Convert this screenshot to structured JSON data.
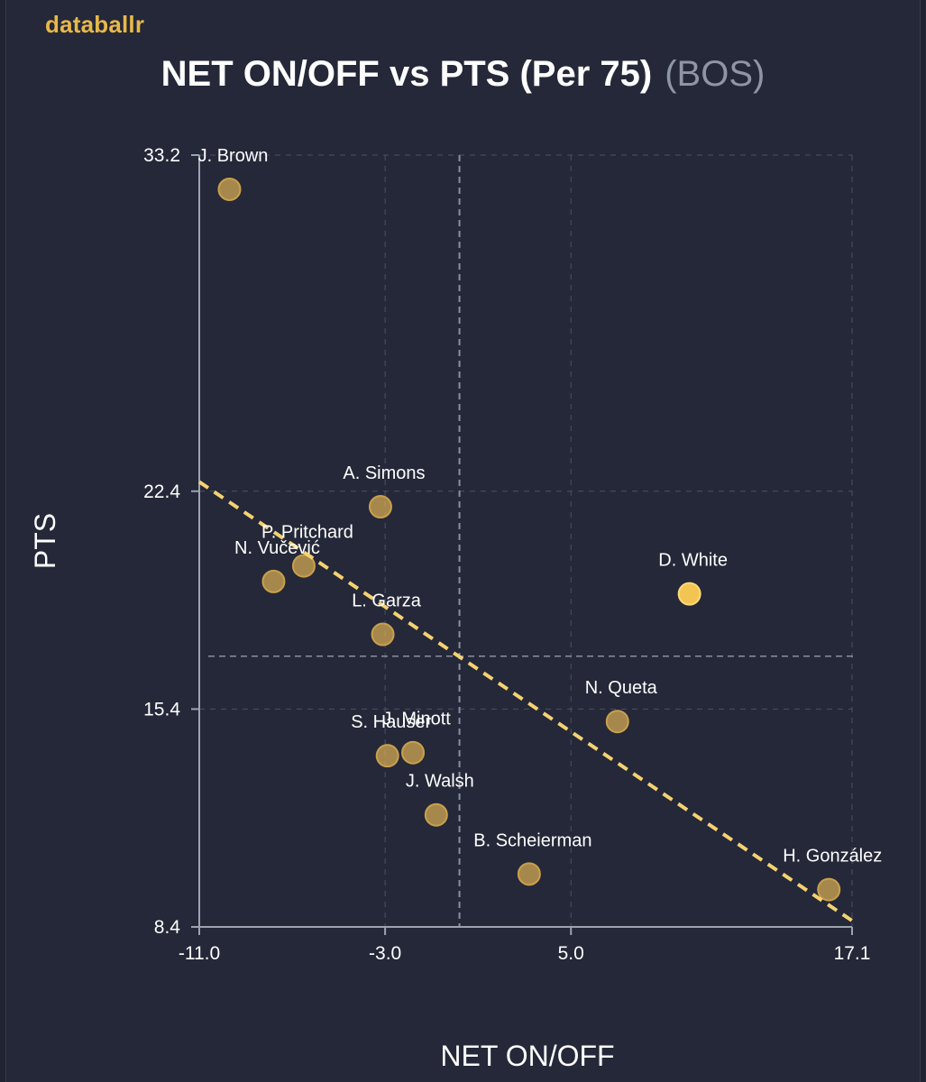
{
  "brand": "databallr",
  "title": "NET ON/OFF vs PTS (Per 75)",
  "team": "(BOS)",
  "chart_data": {
    "type": "scatter",
    "title": "NET ON/OFF vs PTS (Per 75)",
    "subtitle": "(BOS)",
    "xlabel": "NET ON/OFF",
    "ylabel": "PTS",
    "xlim": [
      -11.0,
      17.1
    ],
    "ylim": [
      8.4,
      33.2
    ],
    "xticks": [
      "-11.0",
      "-3.0",
      "5.0",
      "17.1"
    ],
    "yticks": [
      "8.4",
      "15.4",
      "22.4",
      "33.2"
    ],
    "x_reference": 0.2,
    "y_reference": 17.1,
    "trendline": {
      "x": [
        -11.0,
        17.1
      ],
      "y": [
        22.7,
        8.6
      ]
    },
    "colors": {
      "point": "#d9ad55",
      "point_highlight": "#f2c553",
      "trend": "#f5d271",
      "grid": "#4b5164"
    },
    "points": [
      {
        "name": "J. Brown",
        "x": -9.7,
        "y": 32.1
      },
      {
        "name": "A. Simons",
        "x": -3.2,
        "y": 21.9
      },
      {
        "name": "P. Pritchard",
        "x": -6.5,
        "y": 20.0
      },
      {
        "name": "N. Vučević",
        "x": -7.8,
        "y": 19.5
      },
      {
        "name": "D. White",
        "x": 10.1,
        "y": 19.1
      },
      {
        "name": "L. Garza",
        "x": -3.1,
        "y": 17.8
      },
      {
        "name": "N. Queta",
        "x": 7.0,
        "y": 15.0
      },
      {
        "name": "S. Hauser",
        "x": -2.9,
        "y": 13.9
      },
      {
        "name": "J. Minott",
        "x": -1.8,
        "y": 14.0
      },
      {
        "name": "J. Walsh",
        "x": -0.8,
        "y": 12.0
      },
      {
        "name": "B. Scheierman",
        "x": 3.2,
        "y": 10.1
      },
      {
        "name": "H. González",
        "x": 16.1,
        "y": 9.6
      }
    ]
  }
}
